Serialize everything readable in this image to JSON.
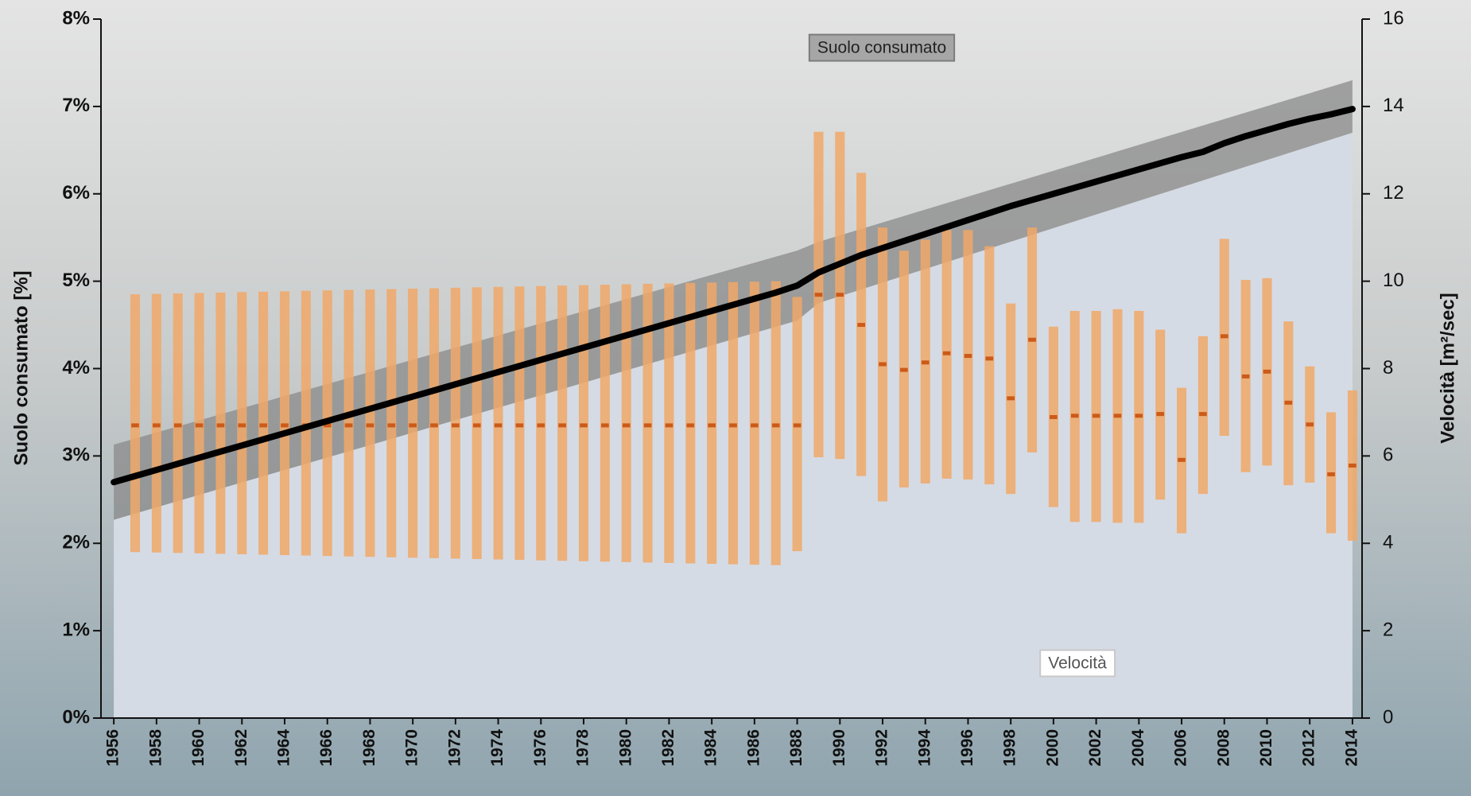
{
  "chart_data": {
    "type": "line",
    "y_label": "Suolo consumato [%]",
    "y2_label": "Velocità [m²/sec]",
    "x": [
      1956,
      1957,
      1958,
      1959,
      1960,
      1961,
      1962,
      1963,
      1964,
      1965,
      1966,
      1967,
      1968,
      1969,
      1970,
      1971,
      1972,
      1973,
      1974,
      1975,
      1976,
      1977,
      1978,
      1979,
      1980,
      1981,
      1982,
      1983,
      1984,
      1985,
      1986,
      1987,
      1988,
      1989,
      1990,
      1991,
      1992,
      1993,
      1994,
      1995,
      1996,
      1997,
      1998,
      1999,
      2000,
      2001,
      2002,
      2003,
      2004,
      2005,
      2006,
      2007,
      2008,
      2009,
      2010,
      2011,
      2012,
      2013,
      2014
    ],
    "xlim": [
      1955.4,
      2014.45
    ],
    "xticks": [
      1956,
      1958,
      1960,
      1962,
      1964,
      1966,
      1968,
      1970,
      1972,
      1974,
      1976,
      1978,
      1980,
      1982,
      1984,
      1986,
      1988,
      1990,
      1992,
      1994,
      1996,
      1998,
      2000,
      2002,
      2004,
      2006,
      2008,
      2010,
      2012,
      2014
    ],
    "ylim": [
      0,
      8
    ],
    "yticks": [
      {
        "value": 0,
        "label": "0%"
      },
      {
        "value": 1,
        "label": "1%"
      },
      {
        "value": 2,
        "label": "2%"
      },
      {
        "value": 3,
        "label": "3%"
      },
      {
        "value": 4,
        "label": "4%"
      },
      {
        "value": 5,
        "label": "5%"
      },
      {
        "value": 6,
        "label": "6%"
      },
      {
        "value": 7,
        "label": "7%"
      },
      {
        "value": 8,
        "label": "8%"
      }
    ],
    "y2lim": [
      0,
      16
    ],
    "y2ticks": [
      0,
      2,
      4,
      6,
      8,
      10,
      12,
      14,
      16
    ],
    "band": {
      "x": [
        1956,
        1988,
        1989,
        2014
      ],
      "lower": [
        2.27,
        4.55,
        4.75,
        6.7
      ],
      "upper": [
        3.13,
        5.35,
        5.45,
        7.3
      ],
      "color": "#8a8a8a",
      "area_color": "#d5dbe5"
    },
    "series": [
      {
        "name": "Suolo consumato",
        "color": "#000000",
        "values": [
          2.7,
          2.77,
          2.84,
          2.91,
          2.98,
          3.05,
          3.12,
          3.19,
          3.26,
          3.33,
          3.4,
          3.47,
          3.54,
          3.61,
          3.68,
          3.75,
          3.82,
          3.89,
          3.96,
          4.03,
          4.1,
          4.17,
          4.24,
          4.31,
          4.38,
          4.45,
          4.52,
          4.59,
          4.66,
          4.73,
          4.8,
          4.87,
          4.95,
          5.1,
          5.2,
          5.3,
          5.38,
          5.46,
          5.54,
          5.62,
          5.7,
          5.78,
          5.86,
          5.93,
          6.0,
          6.07,
          6.14,
          6.21,
          6.28,
          6.35,
          6.42,
          6.48,
          6.58,
          6.66,
          6.73,
          6.8,
          6.86,
          6.91,
          6.97
        ]
      },
      {
        "name": "Velocità",
        "axis": "y2",
        "color": "#f0a868",
        "center_color": "#cc5a18",
        "x": [
          1957,
          1958,
          1959,
          1960,
          1961,
          1962,
          1963,
          1964,
          1965,
          1966,
          1967,
          1968,
          1969,
          1970,
          1971,
          1972,
          1973,
          1974,
          1975,
          1976,
          1977,
          1978,
          1979,
          1980,
          1981,
          1982,
          1983,
          1984,
          1985,
          1986,
          1987,
          1988,
          1989,
          1990,
          1991,
          1992,
          1993,
          1994,
          1995,
          1996,
          1997,
          1998,
          1999,
          2000,
          2001,
          2002,
          2003,
          2004,
          2005,
          2006,
          2007,
          2008,
          2009,
          2010,
          2011,
          2012,
          2013,
          2014
        ],
        "high": [
          9.7,
          9.71,
          9.72,
          9.73,
          9.74,
          9.75,
          9.76,
          9.77,
          9.78,
          9.79,
          9.8,
          9.81,
          9.82,
          9.83,
          9.84,
          9.85,
          9.86,
          9.87,
          9.88,
          9.89,
          9.9,
          9.91,
          9.92,
          9.93,
          9.94,
          9.95,
          9.96,
          9.97,
          9.98,
          9.99,
          10.0,
          9.64,
          13.42,
          13.42,
          12.48,
          11.23,
          10.7,
          10.95,
          11.17,
          11.17,
          10.8,
          9.49,
          11.23,
          8.96,
          9.32,
          9.32,
          9.36,
          9.32,
          8.89,
          7.56,
          8.74,
          10.97,
          10.03,
          10.07,
          9.08,
          8.05,
          7.0,
          7.5
        ],
        "low": [
          3.8,
          3.79,
          3.78,
          3.77,
          3.76,
          3.75,
          3.74,
          3.73,
          3.72,
          3.71,
          3.7,
          3.69,
          3.68,
          3.67,
          3.66,
          3.65,
          3.64,
          3.63,
          3.62,
          3.61,
          3.6,
          3.59,
          3.58,
          3.57,
          3.56,
          3.55,
          3.54,
          3.53,
          3.52,
          3.51,
          3.5,
          3.82,
          5.97,
          5.93,
          5.54,
          4.96,
          5.28,
          5.37,
          5.48,
          5.46,
          5.35,
          5.13,
          6.08,
          4.83,
          4.49,
          4.49,
          4.47,
          4.47,
          5.0,
          4.23,
          5.13,
          6.46,
          5.63,
          5.78,
          5.33,
          5.39,
          4.23,
          4.06
        ],
        "values": [
          6.7,
          6.7,
          6.7,
          6.7,
          6.7,
          6.7,
          6.7,
          6.7,
          6.7,
          6.7,
          6.7,
          6.7,
          6.7,
          6.7,
          6.7,
          6.7,
          6.7,
          6.7,
          6.7,
          6.7,
          6.7,
          6.7,
          6.7,
          6.7,
          6.7,
          6.7,
          6.7,
          6.7,
          6.7,
          6.7,
          6.7,
          6.7,
          9.69,
          9.69,
          9.0,
          8.1,
          7.97,
          8.14,
          8.35,
          8.29,
          8.23,
          7.32,
          8.66,
          6.89,
          6.92,
          6.92,
          6.92,
          6.92,
          6.96,
          5.91,
          6.96,
          8.74,
          7.82,
          7.93,
          7.22,
          6.72,
          5.58,
          5.78
        ]
      }
    ]
  }
}
